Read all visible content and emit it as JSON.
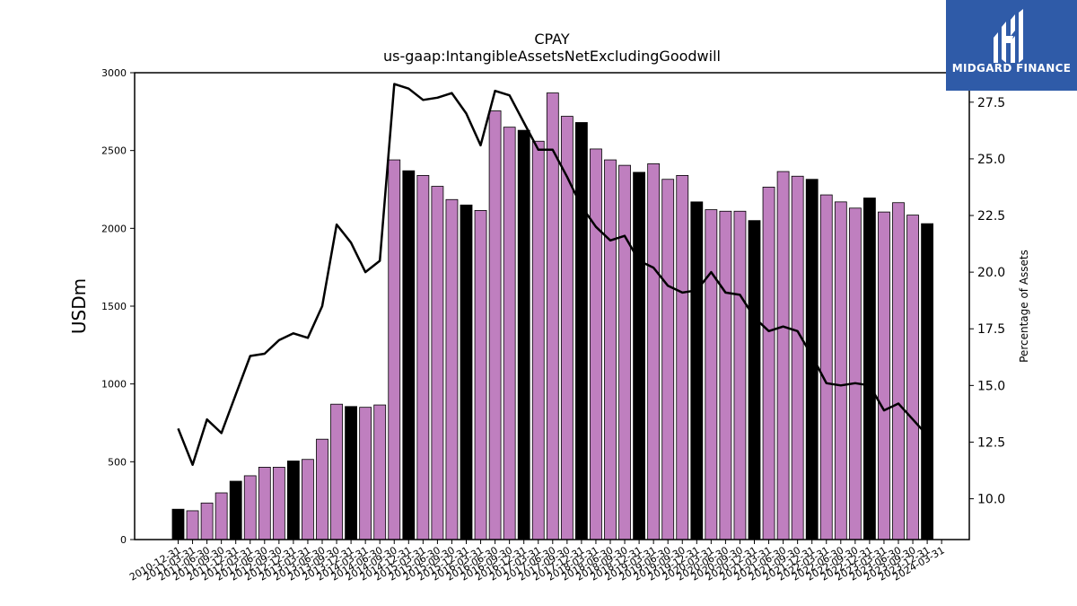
{
  "logo": {
    "text": "MIDGARD FINANCE",
    "background": "#2f5ba8"
  },
  "chart_data": {
    "type": "bar",
    "title": "CPAY",
    "subtitle": "us-gaap:IntangibleAssetsNetExcludingGoodwill",
    "ylabel": "USDm",
    "y2label": "Percentage of Assets",
    "ylim": [
      0,
      3000
    ],
    "y2lim": [
      8.2,
      28.8
    ],
    "yticks": [
      0,
      500,
      1000,
      1500,
      2000,
      2500,
      3000
    ],
    "y2ticks": [
      "10.0",
      "12.5",
      "15.0",
      "17.5",
      "20.0",
      "22.5",
      "25.0",
      "27.5"
    ],
    "grid": false,
    "colors": {
      "q4": "#000000",
      "other": "#bf7fbf",
      "line": "#000000"
    },
    "categories": [
      "2010-12-31",
      "2011-03-31",
      "2011-06-30",
      "2011-09-30",
      "2011-12-31",
      "2012-03-31",
      "2012-06-30",
      "2012-09-30",
      "2012-12-31",
      "2013-03-31",
      "2013-06-30",
      "2013-09-30",
      "2013-12-31",
      "2014-03-31",
      "2014-06-30",
      "2014-09-30",
      "2014-12-31",
      "2015-03-31",
      "2015-06-30",
      "2015-09-30",
      "2015-12-31",
      "2016-03-31",
      "2016-06-30",
      "2016-09-30",
      "2016-12-31",
      "2017-03-31",
      "2017-06-30",
      "2017-09-30",
      "2017-12-31",
      "2018-03-31",
      "2018-06-30",
      "2018-09-30",
      "2018-12-31",
      "2019-03-31",
      "2019-06-30",
      "2019-09-30",
      "2019-12-31",
      "2020-03-31",
      "2020-06-30",
      "2020-09-30",
      "2020-12-31",
      "2021-03-31",
      "2021-06-30",
      "2021-09-30",
      "2021-12-31",
      "2022-03-31",
      "2022-06-30",
      "2022-09-30",
      "2022-12-31",
      "2023-03-31",
      "2023-06-30",
      "2023-09-30",
      "2023-12-31",
      "2024-03-31"
    ],
    "series": [
      {
        "kind": "bar",
        "values": [
          195,
          185,
          235,
          300,
          375,
          410,
          465,
          465,
          505,
          515,
          645,
          870,
          855,
          850,
          865,
          2440,
          2370,
          2340,
          2270,
          2185,
          2150,
          2115,
          2755,
          2650,
          2630,
          2560,
          2870,
          2720,
          2680,
          2510,
          2440,
          2405,
          2360,
          2415,
          2315,
          2340,
          2170,
          2120,
          2110,
          2110,
          2050,
          2265,
          2365,
          2335,
          2315,
          2215,
          2170,
          2130,
          2195,
          2105,
          2165,
          2085,
          2030,
          null
        ],
        "highlight_q4": true
      },
      {
        "kind": "line",
        "axis": "right",
        "values": [
          13.1,
          11.5,
          13.5,
          12.9,
          14.6,
          16.3,
          16.4,
          17.0,
          17.3,
          17.1,
          18.5,
          22.1,
          21.3,
          20.0,
          20.5,
          28.3,
          28.1,
          27.6,
          27.7,
          27.9,
          27.0,
          25.6,
          28.0,
          27.8,
          26.6,
          25.4,
          25.4,
          24.2,
          22.9,
          22.0,
          21.4,
          21.6,
          20.5,
          20.2,
          19.4,
          19.1,
          19.2,
          20.0,
          19.1,
          19.0,
          18.0,
          17.4,
          17.6,
          17.4,
          16.3,
          15.1,
          15.0,
          15.1,
          15.0,
          13.9,
          14.2,
          13.5,
          12.8,
          null
        ]
      }
    ]
  }
}
